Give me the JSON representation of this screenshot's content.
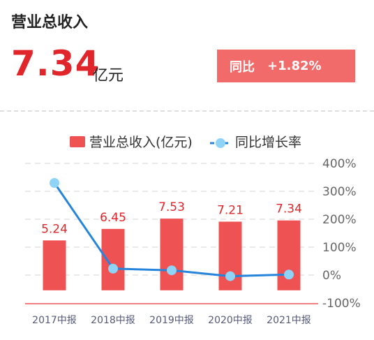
{
  "header": {
    "title": "营业总收入",
    "value": "7.34",
    "unit": "亿元",
    "yoy_label": "同比",
    "yoy_value": "+1.82%"
  },
  "colors": {
    "bar": "#ee5253",
    "line": "#2684db",
    "point": "#8fd3f7",
    "value_red": "#e0262a",
    "badge": "#f26b6b"
  },
  "chart_data": {
    "type": "bar",
    "categories": [
      "2017中报",
      "2018中报",
      "2019中报",
      "2020中报",
      "2021中报"
    ],
    "series": [
      {
        "name": "营业总收入(亿元)",
        "type": "bar",
        "values": [
          5.24,
          6.45,
          7.53,
          7.21,
          7.34
        ],
        "labels": [
          "5.24",
          "6.45",
          "7.53",
          "7.21",
          "7.34"
        ]
      },
      {
        "name": "同比增长率",
        "type": "line",
        "axis": "right",
        "values": [
          330,
          23,
          17,
          -4,
          1.82
        ]
      }
    ],
    "y_right_ticks": [
      "400%",
      "300%",
      "200%",
      "100%",
      "0%",
      "-100%"
    ],
    "y_right_range": [
      -100,
      400
    ],
    "bar_axis_range": [
      -1.333,
      13.333
    ],
    "grid": true,
    "legend_position": "top"
  }
}
